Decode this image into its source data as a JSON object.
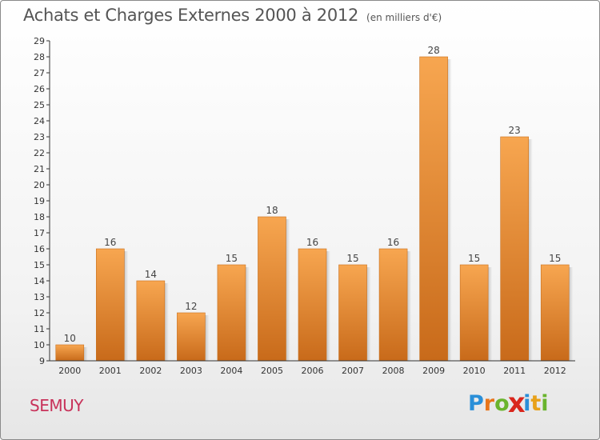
{
  "header": {
    "title": "Achats et Charges Externes 2000 à 2012",
    "unit": "(en milliers d'€)"
  },
  "footer": {
    "city": "SEMUY",
    "logo_letters": [
      "P",
      "r",
      "o",
      "x",
      "i",
      "t",
      "i"
    ],
    "logo_colors": [
      "#2a8fd8",
      "#e8751a",
      "#6ab42d",
      "#d9261c",
      "#2a8fd8",
      "#e8a11a",
      "#6ab42d"
    ]
  },
  "chart_data": {
    "type": "bar",
    "categories": [
      "2000",
      "2001",
      "2002",
      "2003",
      "2004",
      "2005",
      "2006",
      "2007",
      "2008",
      "2009",
      "2010",
      "2011",
      "2012"
    ],
    "values": [
      10,
      16,
      14,
      12,
      15,
      18,
      16,
      15,
      16,
      28,
      15,
      23,
      15
    ],
    "data_labels": [
      "10",
      "16",
      "14",
      "12",
      "15",
      "18",
      "16",
      "15",
      "16",
      "28",
      "15",
      "23",
      "15"
    ],
    "yticks": [
      "9",
      "10",
      "11",
      "12",
      "13",
      "14",
      "15",
      "16",
      "17",
      "18",
      "19",
      "20",
      "21",
      "22",
      "23",
      "24",
      "25",
      "26",
      "27",
      "28",
      "29"
    ],
    "ylim": [
      9,
      29
    ],
    "title": "Achats et Charges Externes 2000 à 2012",
    "xlabel": "",
    "ylabel": "",
    "grid": false,
    "bar_color_top": "#f7a650",
    "bar_color_bottom": "#c86a1a"
  }
}
